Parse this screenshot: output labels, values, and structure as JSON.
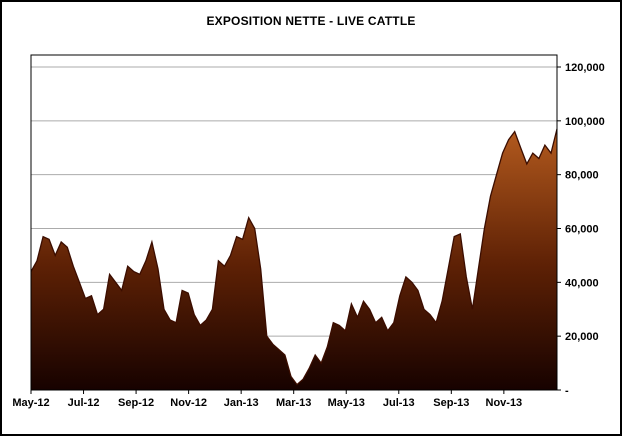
{
  "chart_data": {
    "type": "area",
    "title": "EXPOSITION NETTE - LIVE CATTLE",
    "series_name": "exposition-nette",
    "x_tick_labels": [
      "May-12",
      "Jul-12",
      "Sep-12",
      "Nov-12",
      "Jan-13",
      "Mar-13",
      "May-13",
      "Jul-13",
      "Sep-13",
      "Nov-13"
    ],
    "x_tick_positions_weeks": [
      0,
      8.69,
      17.38,
      26.07,
      34.76,
      43.45,
      52.14,
      60.83,
      69.52,
      78.21
    ],
    "total_weeks": 87,
    "y_ticks": [
      120000,
      100000,
      80000,
      60000,
      40000,
      20000,
      0
    ],
    "y_tick_labels": [
      "120,000",
      "100,000",
      "80,000",
      "60,000",
      "40,000",
      "20,000",
      "-"
    ],
    "ylim": [
      0,
      124000
    ],
    "grid": true,
    "legend": "none",
    "y_axis_side": "right",
    "values": [
      44000,
      48000,
      57000,
      56000,
      50000,
      55000,
      53000,
      46000,
      40000,
      34000,
      35000,
      28000,
      30000,
      43000,
      40000,
      37000,
      46000,
      44000,
      43000,
      48000,
      55000,
      45000,
      30000,
      26000,
      25000,
      37000,
      36000,
      28000,
      24000,
      26000,
      30000,
      48000,
      46000,
      50000,
      57000,
      56000,
      64000,
      60000,
      45000,
      20000,
      17000,
      15000,
      13000,
      5000,
      2000,
      4000,
      8000,
      13000,
      10000,
      16000,
      25000,
      24000,
      22000,
      32000,
      27000,
      33000,
      30000,
      25000,
      27000,
      22000,
      25000,
      35000,
      42000,
      40000,
      37000,
      30000,
      28000,
      25000,
      33000,
      45000,
      57000,
      58000,
      42000,
      30000,
      45000,
      60000,
      72000,
      80000,
      88000,
      93000,
      96000,
      90000,
      84000,
      88000,
      86000,
      91000,
      88000,
      97000
    ],
    "colors": {
      "fill_top": "#B35A1E",
      "fill_mid": "#5E2105",
      "fill_bottom": "#170200",
      "line": "#3B0D00",
      "grid": "#ABABAB",
      "axis": "#000000",
      "background": "#FFFFFF"
    }
  }
}
